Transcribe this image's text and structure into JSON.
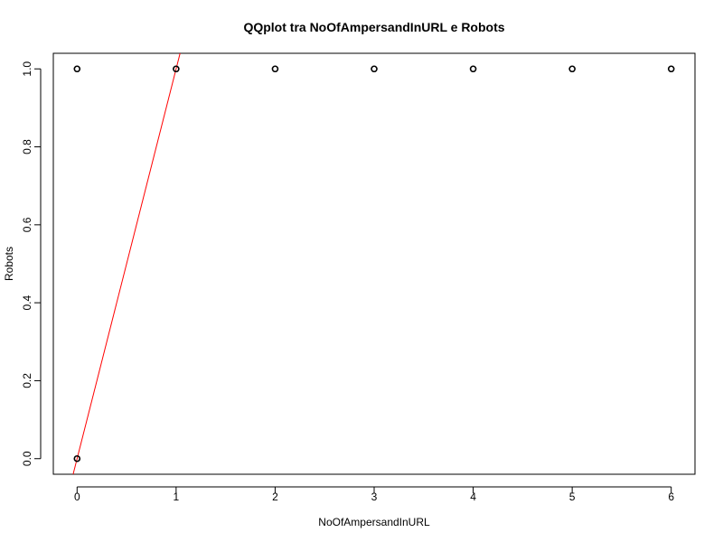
{
  "chart_data": {
    "type": "scatter",
    "title": "QQplot tra NoOfAmpersandInURL e Robots",
    "xlabel": "NoOfAmpersandInURL",
    "ylabel": "Robots",
    "xlim": [
      -0.24,
      6.24
    ],
    "ylim": [
      -0.04,
      1.04
    ],
    "x_ticks": [
      0,
      1,
      2,
      3,
      4,
      5,
      6
    ],
    "x_tick_labels": [
      "0",
      "1",
      "2",
      "3",
      "4",
      "5",
      "6"
    ],
    "y_ticks": [
      0,
      0.2,
      0.4,
      0.6,
      0.8,
      1.0
    ],
    "y_tick_labels": [
      "0.0",
      "0.2",
      "0.4",
      "0.6",
      "0.8",
      "1.0"
    ],
    "grid": false,
    "points": [
      {
        "x": 0,
        "y": 0
      },
      {
        "x": 0,
        "y": 1
      },
      {
        "x": 1,
        "y": 1
      },
      {
        "x": 2,
        "y": 1
      },
      {
        "x": 3,
        "y": 1
      },
      {
        "x": 4,
        "y": 1
      },
      {
        "x": 5,
        "y": 1
      },
      {
        "x": 6,
        "y": 1
      }
    ],
    "reference_line": {
      "intercept": 0,
      "slope": 1,
      "color": "#ff0000"
    },
    "point_color": "#000000"
  }
}
